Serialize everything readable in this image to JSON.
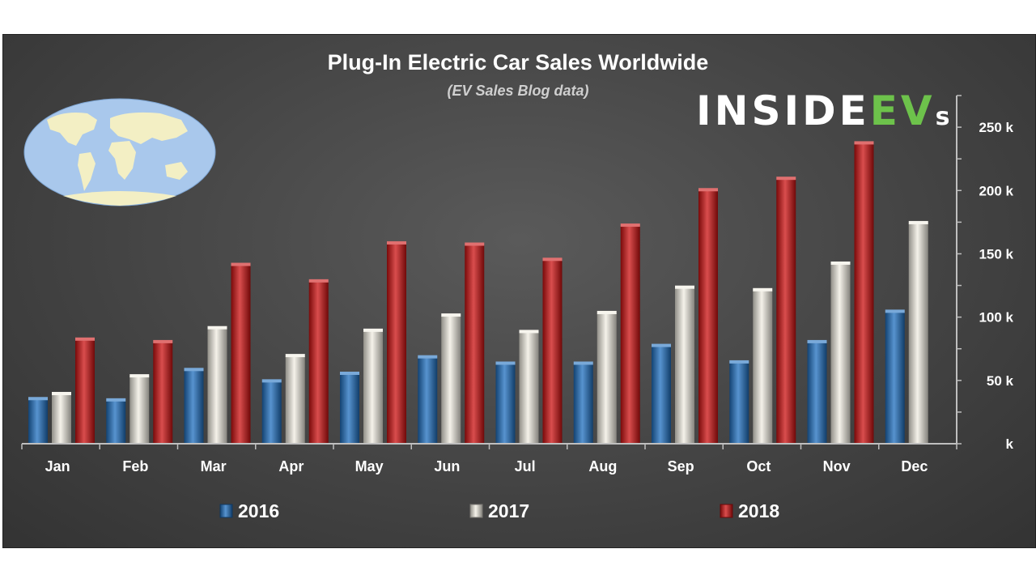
{
  "chart_data": {
    "type": "bar",
    "title": "Plug-In Electric Car Sales Worldwide",
    "subtitle": "(EV Sales Blog data)",
    "xlabel": "",
    "ylabel": "",
    "categories": [
      "Jan",
      "Feb",
      "Mar",
      "Apr",
      "May",
      "Jun",
      "Jul",
      "Aug",
      "Sep",
      "Oct",
      "Nov",
      "Dec"
    ],
    "series": [
      {
        "name": "2016",
        "color": "#1f6fbf",
        "values": [
          35,
          34,
          58,
          49,
          55,
          68,
          63,
          63,
          77,
          64,
          80,
          104
        ]
      },
      {
        "name": "2017",
        "color": "#f2eee3",
        "values": [
          39,
          53,
          91,
          69,
          89,
          101,
          88,
          103,
          123,
          121,
          142,
          174
        ]
      },
      {
        "name": "2018",
        "color": "#cc1111",
        "values": [
          82,
          80,
          141,
          128,
          158,
          157,
          145,
          172,
          200,
          209,
          237,
          null
        ]
      }
    ],
    "ylim": [
      0,
      275
    ],
    "y_ticks": [
      {
        "value": 0,
        "label": "k"
      },
      {
        "value": 50,
        "label": "50 k"
      },
      {
        "value": 100,
        "label": "100 k"
      },
      {
        "value": 150,
        "label": "150 k"
      },
      {
        "value": 200,
        "label": "200 k"
      },
      {
        "value": 250,
        "label": "250 k"
      }
    ],
    "y_axis_position": "right",
    "legend_position": "bottom",
    "grid": false
  },
  "logo": {
    "part1": "INSIDE",
    "part2": "EV",
    "part3": "s"
  }
}
